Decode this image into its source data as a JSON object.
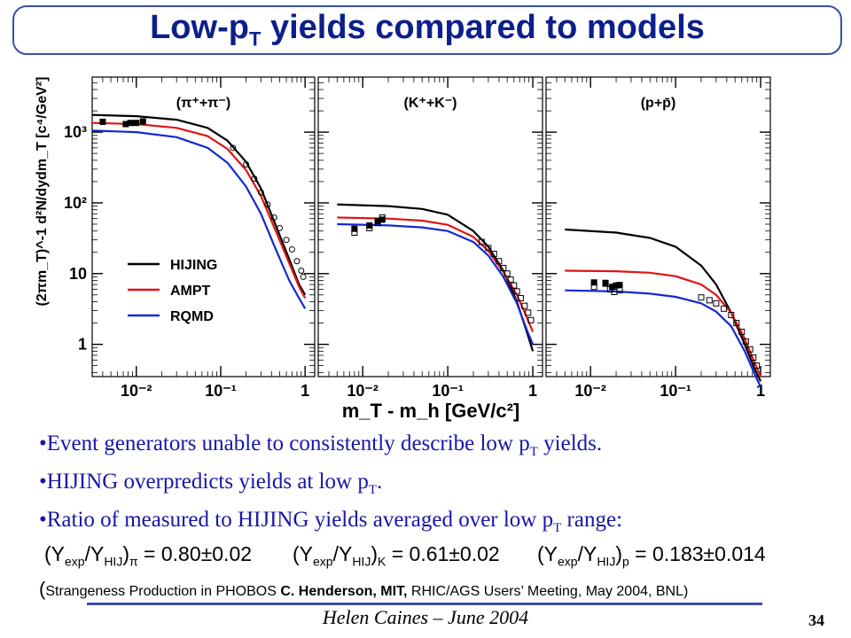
{
  "slide": {
    "title_main": "Low-p",
    "title_sub": "T",
    "title_rest": " yields compared to models",
    "bullets": [
      {
        "pre": "•Event generators unable to consistently describe low p",
        "sub": "T",
        "post": " yields."
      },
      {
        "pre": "•HIJING overpredicts yields at low p",
        "sub": "T",
        "post": "."
      },
      {
        "pre": "•Ratio of measured to HIJING yields averaged over low p",
        "sub": "T",
        "post": " range:"
      }
    ],
    "ratios": [
      {
        "lead": "(Y",
        "exp": "exp",
        "mid": "/Y",
        "hij": "HIJ",
        "close": ")",
        "species": "π",
        "value": " = 0.80±0.02"
      },
      {
        "lead": "(Y",
        "exp": "exp",
        "mid": "/Y",
        "hij": "HIJ",
        "close": ")",
        "species": "K",
        "value": " = 0.61±0.02"
      },
      {
        "lead": "(Y",
        "exp": "exp",
        "mid": "/Y",
        "hij": "HIJ",
        "close": ")",
        "species": "p",
        "value": " = 0.183±0.014"
      }
    ],
    "reference": {
      "open": "(",
      "text1": "Strangeness Production in PHOBOS",
      "author": "C. Henderson, MIT,",
      "text2": " RHIC/AGS Users’ Meeting, May 2004, BNL)"
    },
    "footer": "Helen Caines – June 2004",
    "page_number": "34"
  },
  "chart_data": {
    "type": "scatter",
    "ylabel": "(2πm_T)^-1 d²N/dydm_T [c⁴/GeV²]",
    "xlabel": "m_T - m_h [GeV/c²]",
    "xscale": "log",
    "yscale": "log",
    "xlim": [
      0.003,
      1.3
    ],
    "ylim": [
      0.35,
      6000
    ],
    "y_ticks": [
      {
        "v": 1,
        "label": "1"
      },
      {
        "v": 10,
        "label": "10"
      },
      {
        "v": 100,
        "label": "10²"
      },
      {
        "v": 1000,
        "label": "10³"
      }
    ],
    "x_ticks": [
      {
        "v": 0.01,
        "label": "10⁻²"
      },
      {
        "v": 0.1,
        "label": "10⁻¹"
      },
      {
        "v": 1,
        "label": "1"
      }
    ],
    "legend": {
      "placement": "lower-left of first panel",
      "entries": [
        {
          "name": "HIJING",
          "color": "#000000"
        },
        {
          "name": "AMPT",
          "color": "#e01414"
        },
        {
          "name": "RQMD",
          "color": "#1428d2"
        }
      ]
    },
    "panels": [
      {
        "label": "(π⁺+π⁻)",
        "models": [
          {
            "name": "HIJING",
            "color": "#000000",
            "points": [
              [
                0.003,
                1750
              ],
              [
                0.01,
                1680
              ],
              [
                0.03,
                1500
              ],
              [
                0.07,
                1150
              ],
              [
                0.12,
                760
              ],
              [
                0.2,
                380
              ],
              [
                0.3,
                160
              ],
              [
                0.45,
                48
              ],
              [
                0.65,
                16
              ],
              [
                0.85,
                7
              ],
              [
                1.0,
                5
              ]
            ]
          },
          {
            "name": "AMPT",
            "color": "#e01414",
            "points": [
              [
                0.003,
                1350
              ],
              [
                0.01,
                1300
              ],
              [
                0.03,
                1150
              ],
              [
                0.07,
                880
              ],
              [
                0.12,
                580
              ],
              [
                0.2,
                290
              ],
              [
                0.3,
                125
              ],
              [
                0.45,
                40
              ],
              [
                0.65,
                14
              ],
              [
                0.85,
                6.5
              ],
              [
                1.0,
                4.5
              ]
            ]
          },
          {
            "name": "RQMD",
            "color": "#1428d2",
            "points": [
              [
                0.003,
                1050
              ],
              [
                0.01,
                1000
              ],
              [
                0.03,
                850
              ],
              [
                0.07,
                600
              ],
              [
                0.12,
                370
              ],
              [
                0.2,
                170
              ],
              [
                0.3,
                70
              ],
              [
                0.45,
                22
              ],
              [
                0.65,
                8
              ],
              [
                0.85,
                4.5
              ],
              [
                1.0,
                3.2
              ]
            ]
          }
        ],
        "data": [
          {
            "marker": "filled-square",
            "points": [
              [
                0.004,
                1400
              ],
              [
                0.0075,
                1300
              ],
              [
                0.0085,
                1350
              ],
              [
                0.01,
                1350
              ],
              [
                0.012,
                1420
              ]
            ]
          },
          {
            "marker": "open-circle",
            "points": [
              [
                0.14,
                600
              ],
              [
                0.2,
                350
              ],
              [
                0.25,
                220
              ],
              [
                0.3,
                140
              ],
              [
                0.36,
                95
              ],
              [
                0.43,
                62
              ],
              [
                0.5,
                44
              ],
              [
                0.6,
                30
              ],
              [
                0.7,
                22
              ],
              [
                0.8,
                15
              ],
              [
                0.9,
                11
              ],
              [
                0.95,
                9
              ]
            ]
          }
        ]
      },
      {
        "label": "(K⁺+K⁻)",
        "models": [
          {
            "name": "HIJING",
            "color": "#000000",
            "points": [
              [
                0.005,
                95
              ],
              [
                0.02,
                90
              ],
              [
                0.05,
                82
              ],
              [
                0.1,
                68
              ],
              [
                0.2,
                40
              ],
              [
                0.3,
                24
              ],
              [
                0.45,
                11
              ],
              [
                0.65,
                4
              ],
              [
                0.85,
                1.5
              ],
              [
                1.0,
                0.8
              ]
            ]
          },
          {
            "name": "AMPT",
            "color": "#e01414",
            "points": [
              [
                0.005,
                62
              ],
              [
                0.02,
                60
              ],
              [
                0.05,
                56
              ],
              [
                0.1,
                49
              ],
              [
                0.2,
                33
              ],
              [
                0.3,
                21
              ],
              [
                0.45,
                10.5
              ],
              [
                0.65,
                5
              ],
              [
                0.85,
                2.4
              ],
              [
                1.0,
                1.5
              ]
            ]
          },
          {
            "name": "RQMD",
            "color": "#1428d2",
            "points": [
              [
                0.005,
                50
              ],
              [
                0.02,
                48
              ],
              [
                0.05,
                45
              ],
              [
                0.1,
                40
              ],
              [
                0.2,
                28
              ],
              [
                0.3,
                18
              ],
              [
                0.45,
                9
              ],
              [
                0.65,
                3.8
              ],
              [
                0.85,
                1.6
              ],
              [
                1.0,
                1
              ]
            ]
          }
        ],
        "data": [
          {
            "marker": "filled-square",
            "points": [
              [
                0.008,
                43
              ],
              [
                0.012,
                48
              ],
              [
                0.015,
                55
              ],
              [
                0.017,
                58
              ]
            ]
          },
          {
            "marker": "open-square",
            "points": [
              [
                0.008,
                38
              ],
              [
                0.012,
                44
              ],
              [
                0.015,
                52
              ],
              [
                0.017,
                62
              ],
              [
                0.25,
                28
              ],
              [
                0.3,
                23
              ],
              [
                0.35,
                19
              ],
              [
                0.4,
                15
              ],
              [
                0.45,
                12
              ],
              [
                0.5,
                10
              ],
              [
                0.55,
                8.2
              ],
              [
                0.6,
                6.8
              ],
              [
                0.65,
                5.6
              ],
              [
                0.72,
                4.5
              ],
              [
                0.8,
                3.5
              ],
              [
                0.88,
                2.8
              ],
              [
                0.95,
                2.2
              ]
            ]
          }
        ]
      },
      {
        "label": "(p+p̄)",
        "models": [
          {
            "name": "HIJING",
            "color": "#000000",
            "points": [
              [
                0.005,
                42
              ],
              [
                0.02,
                38
              ],
              [
                0.05,
                32
              ],
              [
                0.1,
                24
              ],
              [
                0.2,
                13
              ],
              [
                0.3,
                7
              ],
              [
                0.45,
                2.8
              ],
              [
                0.65,
                1
              ],
              [
                0.85,
                0.45
              ],
              [
                1.0,
                0.3
              ]
            ]
          },
          {
            "name": "AMPT",
            "color": "#e01414",
            "points": [
              [
                0.005,
                11
              ],
              [
                0.02,
                10.8
              ],
              [
                0.05,
                10.3
              ],
              [
                0.1,
                9.2
              ],
              [
                0.2,
                7
              ],
              [
                0.3,
                5
              ],
              [
                0.45,
                2.8
              ],
              [
                0.65,
                1.2
              ],
              [
                0.85,
                0.55
              ],
              [
                1.0,
                0.35
              ]
            ]
          },
          {
            "name": "RQMD",
            "color": "#1428d2",
            "points": [
              [
                0.005,
                5.8
              ],
              [
                0.02,
                5.6
              ],
              [
                0.05,
                5.2
              ],
              [
                0.1,
                4.7
              ],
              [
                0.2,
                3.8
              ],
              [
                0.3,
                2.9
              ],
              [
                0.45,
                1.8
              ],
              [
                0.65,
                0.8
              ],
              [
                0.85,
                0.38
              ],
              [
                1.0,
                0.25
              ]
            ]
          }
        ],
        "data": [
          {
            "marker": "filled-square",
            "points": [
              [
                0.011,
                7.5
              ],
              [
                0.015,
                7.4
              ],
              [
                0.018,
                6.5
              ],
              [
                0.02,
                6.8
              ],
              [
                0.022,
                6.9
              ]
            ]
          },
          {
            "marker": "open-square",
            "points": [
              [
                0.011,
                6.5
              ],
              [
                0.015,
                7.2
              ],
              [
                0.017,
                6.0
              ],
              [
                0.019,
                5.5
              ],
              [
                0.022,
                5.8
              ],
              [
                0.2,
                4.6
              ],
              [
                0.25,
                4.2
              ],
              [
                0.3,
                3.8
              ],
              [
                0.37,
                3.2
              ],
              [
                0.45,
                2.6
              ],
              [
                0.52,
                2.0
              ],
              [
                0.6,
                1.5
              ],
              [
                0.67,
                1.1
              ],
              [
                0.75,
                0.85
              ],
              [
                0.82,
                0.65
              ],
              [
                0.9,
                0.5
              ]
            ]
          }
        ]
      }
    ]
  }
}
